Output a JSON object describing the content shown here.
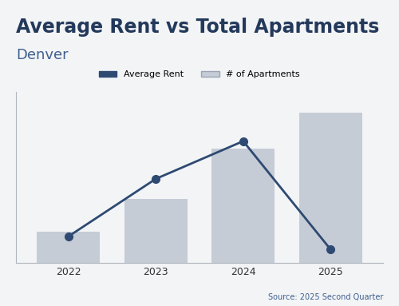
{
  "chart_data": {
    "type": "combo",
    "title": "Average Rent vs Total Apartments",
    "subtitle": "Denver",
    "source": "Source: 2025 Second Quarter",
    "categories": [
      "2022",
      "2023",
      "2024",
      "2025"
    ],
    "series": [
      {
        "name": "Average Rent",
        "type": "line",
        "color": "#2e4a72",
        "marker": "o",
        "values": [
          39,
          123,
          178,
          20
        ]
      },
      {
        "name": "# of Apartments",
        "type": "bar",
        "color": "#c5ccd6",
        "values": [
          46,
          94,
          167,
          220
        ]
      }
    ],
    "ylim": [
      0,
      250
    ],
    "yticks": [],
    "tick_labels": "x",
    "legend": "upper center",
    "grid": false
  }
}
